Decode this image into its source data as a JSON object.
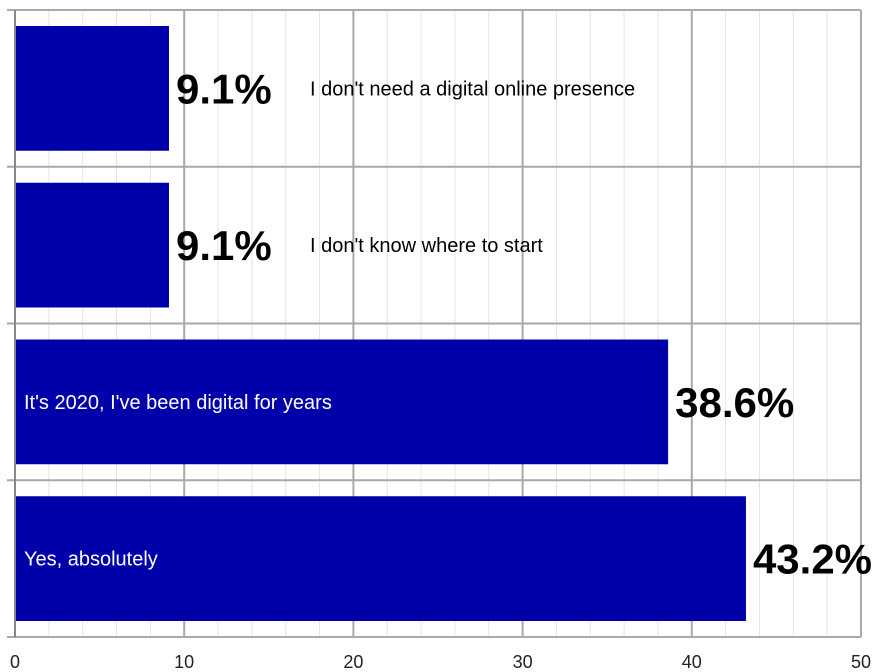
{
  "chart_data": {
    "type": "bar",
    "orientation": "horizontal",
    "categories": [
      "I don't need a digital online presence",
      "I don't know where to start",
      "It's 2020, I've been digital for years",
      "Yes, absolutely"
    ],
    "values": [
      9.1,
      9.1,
      38.6,
      43.2
    ],
    "value_labels": [
      "9.1%",
      "9.1%",
      "38.6%",
      "43.2%"
    ],
    "xlim": [
      0,
      50
    ],
    "x_ticks": [
      0,
      10,
      20,
      30,
      40,
      50
    ],
    "grid": true,
    "bar_color": "#0000aa",
    "title": "",
    "xlabel": "",
    "ylabel": ""
  }
}
